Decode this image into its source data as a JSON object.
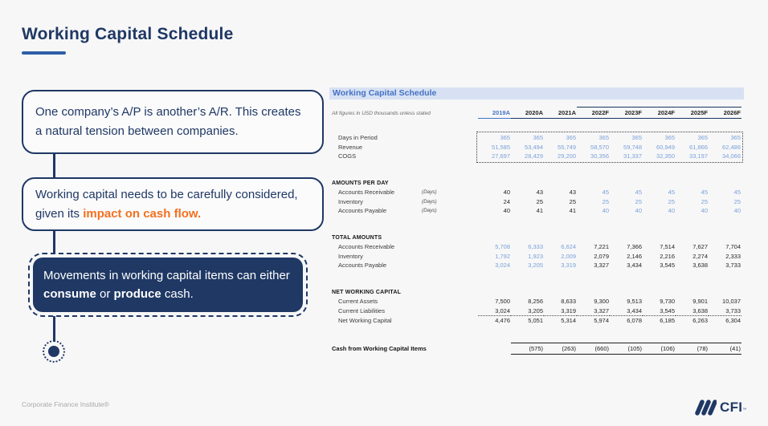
{
  "page": {
    "title": "Working Capital Schedule",
    "footer_left": "Corporate Finance Institute®",
    "logo_text": "CFI",
    "logo_tm": "™"
  },
  "colors": {
    "navy": "#1f3864",
    "accent_underline": "#2e5fa8",
    "orange": "#f4701f",
    "table_title_blue": "#4472c4",
    "table_title_bg": "#d7e1f3",
    "input_blue": "#7aa0d8",
    "body_black": "#262626",
    "background": "#f7f7f8"
  },
  "callouts": [
    {
      "segments": [
        {
          "text": "One company’s A/P is another’s A/R. This creates a natural tension between companies."
        }
      ]
    },
    {
      "segments": [
        {
          "text": "Working capital needs to be carefully considered, given its "
        },
        {
          "text": "impact on cash flow.",
          "style": "orange-bold"
        }
      ]
    },
    {
      "segments": [
        {
          "text": "Movements in working capital items can either "
        },
        {
          "text": "consume",
          "style": "bold"
        },
        {
          "text": " or "
        },
        {
          "text": "produce",
          "style": "bold"
        },
        {
          "text": " cash."
        }
      ]
    }
  ],
  "table": {
    "title": "Working Capital Schedule",
    "note": "All figures in USD thousands unless stated",
    "columns": [
      "2019A",
      "2020A",
      "2021A",
      "2022F",
      "2023F",
      "2024F",
      "2025F",
      "2026F"
    ],
    "forecast_start_index": 3,
    "sections": [
      {
        "header": null,
        "dotted_box": true,
        "rows": [
          {
            "label": "Days in Period",
            "units": "",
            "values": [
              "365",
              "365",
              "365",
              "365",
              "365",
              "365",
              "365",
              "365"
            ],
            "colors": "BBBBBBBB"
          },
          {
            "label": "Revenue",
            "units": "",
            "values": [
              "51,585",
              "53,494",
              "55,749",
              "58,570",
              "59,748",
              "60,949",
              "61,866",
              "62,486"
            ],
            "colors": "BBBBBBBB"
          },
          {
            "label": "COGS",
            "units": "",
            "values": [
              "27,697",
              "28,429",
              "29,200",
              "30,356",
              "31,337",
              "32,350",
              "33,197",
              "34,066"
            ],
            "colors": "BBBBBBBB"
          }
        ]
      },
      {
        "header": "AMOUNTS PER DAY",
        "dotted_box": false,
        "rows": [
          {
            "label": "Accounts Receivable",
            "units": "(Days)",
            "values": [
              "40",
              "43",
              "43",
              "45",
              "45",
              "45",
              "45",
              "45"
            ],
            "colors": "KKKBBBBB"
          },
          {
            "label": "Inventory",
            "units": "(Days)",
            "values": [
              "24",
              "25",
              "25",
              "25",
              "25",
              "25",
              "25",
              "25"
            ],
            "colors": "KKKBBBBB"
          },
          {
            "label": "Accounts Payable",
            "units": "(Days)",
            "values": [
              "40",
              "41",
              "41",
              "40",
              "40",
              "40",
              "40",
              "40"
            ],
            "colors": "KKKBBBBB"
          }
        ]
      },
      {
        "header": "TOTAL AMOUNTS",
        "dotted_box": false,
        "rows": [
          {
            "label": "Accounts Receivable",
            "units": "",
            "values": [
              "5,708",
              "6,333",
              "6,624",
              "7,221",
              "7,366",
              "7,514",
              "7,627",
              "7,704"
            ],
            "colors": "BBBKKKKK"
          },
          {
            "label": "Inventory",
            "units": "",
            "values": [
              "1,792",
              "1,923",
              "2,009",
              "2,079",
              "2,146",
              "2,216",
              "2,274",
              "2,333"
            ],
            "colors": "BBBKKKKK"
          },
          {
            "label": "Accounts Payable",
            "units": "",
            "values": [
              "3,024",
              "3,205",
              "3,319",
              "3,327",
              "3,434",
              "3,545",
              "3,638",
              "3,733"
            ],
            "colors": "BBBKKKKK"
          }
        ]
      },
      {
        "header": "NET WORKING CAPITAL",
        "dotted_box": false,
        "rows": [
          {
            "label": "Current Assets",
            "units": "",
            "values": [
              "7,500",
              "8,256",
              "8,633",
              "9,300",
              "9,513",
              "9,730",
              "9,901",
              "10,037"
            ],
            "colors": "KKKKKKKK"
          },
          {
            "label": "Current Liabilities",
            "units": "",
            "values": [
              "3,024",
              "3,205",
              "3,319",
              "3,327",
              "3,434",
              "3,545",
              "3,638",
              "3,733"
            ],
            "colors": "KKKKKKKK"
          },
          {
            "label": "Net Working Capital",
            "units": "",
            "values": [
              "4,476",
              "5,051",
              "5,314",
              "5,974",
              "6,078",
              "6,185",
              "6,263",
              "6,304"
            ],
            "colors": "KKKKKKKK",
            "dotted_top": true
          }
        ]
      }
    ],
    "cash_row": {
      "label": "Cash from Working Capital Items",
      "values": [
        "",
        "(575)",
        "(263)",
        "(660)",
        "(105)",
        "(106)",
        "(78)",
        "(41)"
      ]
    }
  }
}
